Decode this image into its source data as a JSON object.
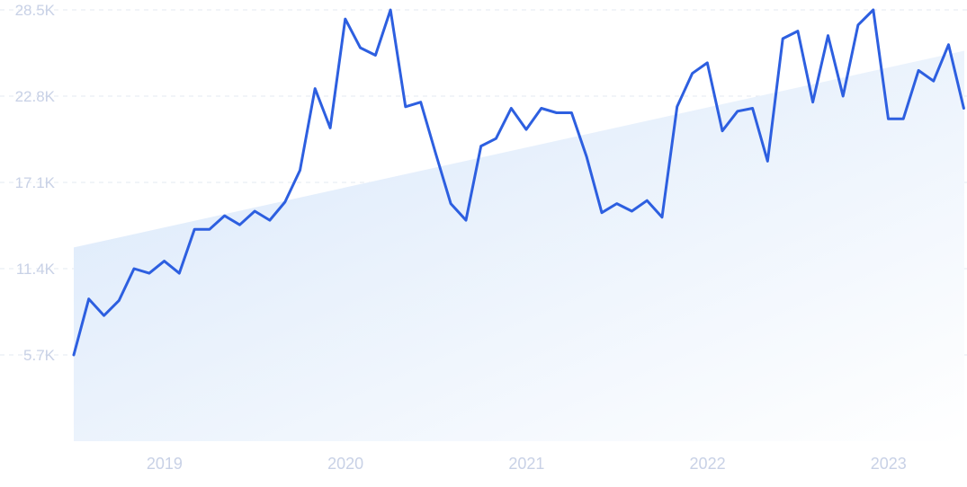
{
  "chart_data": {
    "type": "line",
    "title": "",
    "xlabel": "",
    "ylabel": "",
    "x_ticks": [
      "2019",
      "2020",
      "2021",
      "2022",
      "2023"
    ],
    "y_ticks": [
      "5.7K",
      "11.4K",
      "17.1K",
      "22.8K",
      "28.5K"
    ],
    "y_tick_values": [
      5700,
      11400,
      17100,
      22800,
      28500
    ],
    "ylim": [
      0,
      28500
    ],
    "xlim": [
      2018.75,
      2023.67
    ],
    "grid": "horizontal dashed",
    "legend": "none",
    "series": [
      {
        "x": [
          2018.75,
          2018.833,
          2018.917,
          2019.0,
          2019.083,
          2019.167,
          2019.25,
          2019.333,
          2019.417,
          2019.5,
          2019.583,
          2019.667,
          2019.75,
          2019.833,
          2019.917,
          2020.0,
          2020.083,
          2020.167,
          2020.25,
          2020.333,
          2020.417,
          2020.5,
          2020.583,
          2020.667,
          2020.75,
          2020.833,
          2020.917,
          2021.0,
          2021.083,
          2021.167,
          2021.25,
          2021.333,
          2021.417,
          2021.5,
          2021.583,
          2021.667,
          2021.75,
          2021.833,
          2021.917,
          2022.0,
          2022.083,
          2022.167,
          2022.25,
          2022.333,
          2022.417,
          2022.5,
          2022.583,
          2022.667,
          2022.75,
          2022.833,
          2022.917,
          2023.0,
          2023.083,
          2023.167,
          2023.25,
          2023.333,
          2023.417,
          2023.5,
          2023.583,
          2023.667
        ],
        "values": [
          5700,
          9400,
          8300,
          9300,
          11400,
          11100,
          11900,
          11100,
          14000,
          14000,
          14900,
          14300,
          15200,
          14600,
          15800,
          17900,
          23300,
          20700,
          27900,
          26000,
          25500,
          28500,
          22100,
          22400,
          19000,
          15700,
          14600,
          19500,
          20000,
          22000,
          20600,
          22000,
          21700,
          21700,
          18800,
          15100,
          15700,
          15200,
          15900,
          14800,
          22100,
          24300,
          25000,
          20500,
          21800,
          22000,
          18500,
          26600,
          27100,
          22400,
          26800,
          22800,
          27500,
          28500,
          21300,
          21300,
          24500,
          23800,
          26200,
          22000
        ]
      }
    ],
    "trend": {
      "start": {
        "x": 2018.75,
        "y": 12800
      },
      "end": {
        "x": 2023.67,
        "y": 25800
      }
    },
    "colors": {
      "line": "#2d5fe0",
      "fill_start": "#d8e7fa",
      "fill_end": "#ffffff",
      "grid": "#e3e8f2",
      "tick_text": "#c8d1e6"
    }
  }
}
